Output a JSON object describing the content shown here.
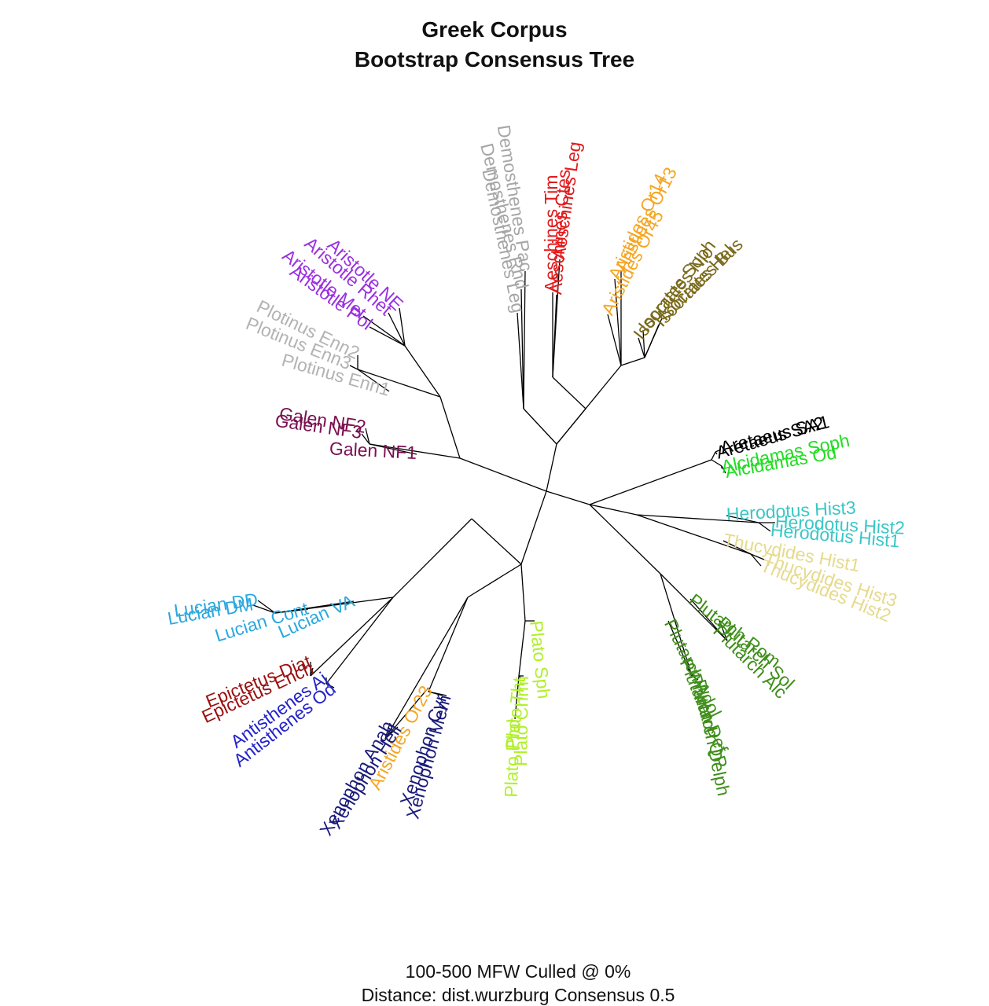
{
  "title": {
    "line1": "Greek Corpus",
    "line2": "Bootstrap Consensus Tree"
  },
  "caption": {
    "line1": "100-500 MFW  Culled @ 0%",
    "line2": "Distance: dist.wurzburg Consensus 0.5"
  },
  "colors": {
    "branch": "#000000",
    "demosthenes": "#a6a6a6",
    "aeschines": "#e31a1c",
    "aristides": "#f5a623",
    "isocrates": "#7a6a1a",
    "aretaeus": "#000000",
    "alcidamas": "#22dd22",
    "herodotus": "#3cc6c6",
    "thucydides": "#e6da8c",
    "plutarch": "#3f8f1a",
    "plato": "#b0f02a",
    "xenophon": "#1a1a7a",
    "antisthenes": "#2222cc",
    "epictetus": "#9a1010",
    "lucian": "#2aa8e0",
    "galen": "#7a1050",
    "plotinus": "#b3b3b3",
    "aristotle": "#9a30e0"
  },
  "tree": {
    "leaves": [
      {
        "label": "Demosthenes Leg",
        "group": "demosthenes"
      },
      {
        "label": "Demosthenes Rhd",
        "group": "demosthenes"
      },
      {
        "label": "Demosthenes Pac",
        "group": "demosthenes"
      },
      {
        "label": "Aeschines Tim",
        "group": "aeschines"
      },
      {
        "label": "Aeschines Ctes",
        "group": "aeschines"
      },
      {
        "label": "Aeschines Leg",
        "group": "aeschines"
      },
      {
        "label": "Aristides Or45",
        "group": "aristides"
      },
      {
        "label": "Aristides Or14",
        "group": "aristides"
      },
      {
        "label": "Aristides Or13",
        "group": "aristides"
      },
      {
        "label": "Isocrates Soph",
        "group": "isocrates"
      },
      {
        "label": "Isocrates Nic",
        "group": "isocrates"
      },
      {
        "label": "Isocrates Hel",
        "group": "isocrates"
      },
      {
        "label": "Isocrates Bus",
        "group": "isocrates"
      },
      {
        "label": "Aretaeus SA2",
        "group": "aretaeus"
      },
      {
        "label": "Aretaeus SA1",
        "group": "aretaeus"
      },
      {
        "label": "Alcidamas Soph",
        "group": "alcidamas"
      },
      {
        "label": "Alcidamas Od",
        "group": "alcidamas"
      },
      {
        "label": "Herodotus Hist3",
        "group": "herodotus"
      },
      {
        "label": "Herodotus Hist2",
        "group": "herodotus"
      },
      {
        "label": "Herodotus Hist1",
        "group": "herodotus"
      },
      {
        "label": "Thucydides Hist1",
        "group": "thucydides"
      },
      {
        "label": "Thucydides Hist3",
        "group": "thucydides"
      },
      {
        "label": "Thucydides Hist2",
        "group": "thucydides"
      },
      {
        "label": "Plutarch Rom",
        "group": "plutarch"
      },
      {
        "label": "Plutarch Sol",
        "group": "plutarch"
      },
      {
        "label": "Plutarch Alc",
        "group": "plutarch"
      },
      {
        "label": "Plutarch Adol",
        "group": "plutarch"
      },
      {
        "label": "Plutarch Def",
        "group": "plutarch"
      },
      {
        "label": "Plutarch QP",
        "group": "plutarch"
      },
      {
        "label": "Plutarch Delph",
        "group": "plutarch"
      },
      {
        "label": "Plato Sph",
        "group": "plato"
      },
      {
        "label": "Plato Chrm",
        "group": "plato"
      },
      {
        "label": "Plato Tht",
        "group": "plato"
      },
      {
        "label": "Plato Phd",
        "group": "plato"
      },
      {
        "label": "Xenophon Mem",
        "group": "xenophon"
      },
      {
        "label": "Xenophon Cyr",
        "group": "xenophon"
      },
      {
        "label": "Aristides Or23",
        "group": "aristides"
      },
      {
        "label": "Xenophon Hell",
        "group": "xenophon"
      },
      {
        "label": "Xenophon Anab",
        "group": "xenophon"
      },
      {
        "label": "Antisthenes Aj",
        "group": "antisthenes"
      },
      {
        "label": "Antisthenes Od",
        "group": "antisthenes"
      },
      {
        "label": "Epictetus Diat",
        "group": "epictetus"
      },
      {
        "label": "Epictetus Ench",
        "group": "epictetus"
      },
      {
        "label": "Lucian VA",
        "group": "lucian"
      },
      {
        "label": "Lucian Cont",
        "group": "lucian"
      },
      {
        "label": "Lucian DM",
        "group": "lucian"
      },
      {
        "label": "Lucian DD",
        "group": "lucian"
      },
      {
        "label": "Galen NF1",
        "group": "galen"
      },
      {
        "label": "Galen NF3",
        "group": "galen"
      },
      {
        "label": "Galen NF2",
        "group": "galen"
      },
      {
        "label": "Plotinus Enn1",
        "group": "plotinus"
      },
      {
        "label": "Plotinus Enn3",
        "group": "plotinus"
      },
      {
        "label": "Plotinus Enn2",
        "group": "plotinus"
      },
      {
        "label": "Aristotle Pol",
        "group": "aristotle"
      },
      {
        "label": "Aristotle Met",
        "group": "aristotle"
      },
      {
        "label": "Aristotle Rhet",
        "group": "aristotle"
      },
      {
        "label": "Aristotle NE",
        "group": "aristotle"
      }
    ]
  }
}
